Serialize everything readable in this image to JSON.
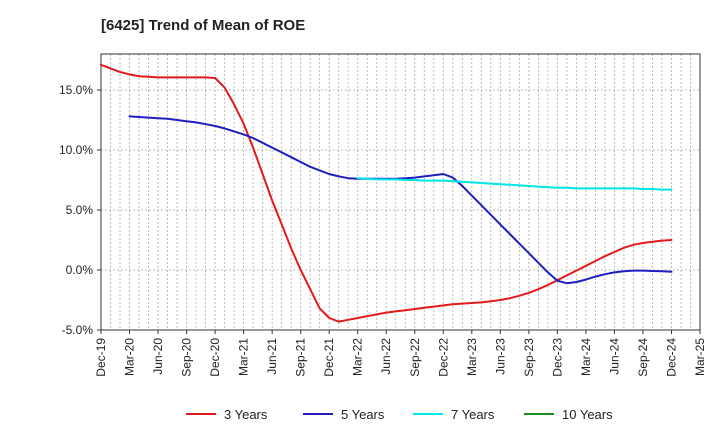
{
  "chart_data": {
    "type": "line",
    "title": "[6425]  Trend of Mean of ROE",
    "xlabel": "",
    "ylabel": "",
    "x_tick_labels": [
      "Dec-19",
      "Mar-20",
      "Jun-20",
      "Sep-20",
      "Dec-20",
      "Mar-21",
      "Jun-21",
      "Sep-21",
      "Dec-21",
      "Mar-22",
      "Jun-22",
      "Sep-22",
      "Dec-22",
      "Mar-23",
      "Jun-23",
      "Sep-23",
      "Dec-23",
      "Mar-24",
      "Jun-24",
      "Sep-24",
      "Dec-24",
      "Mar-25"
    ],
    "y_tick_labels": [
      "-5.0%",
      "0.0%",
      "5.0%",
      "10.0%",
      "15.0%"
    ],
    "y_ticks": [
      -5,
      0,
      5,
      10,
      15
    ],
    "ylim": [
      -5,
      18
    ],
    "grid": true,
    "legend_position": "bottom",
    "series": [
      {
        "name": "3 Years",
        "color": "#e31a1c",
        "x": [
          "Dec-19",
          "Jan-20",
          "Feb-20",
          "Mar-20",
          "Apr-20",
          "May-20",
          "Jun-20",
          "Jul-20",
          "Aug-20",
          "Sep-20",
          "Oct-20",
          "Nov-20",
          "Dec-20",
          "Jan-21",
          "Feb-21",
          "Mar-21",
          "Apr-21",
          "May-21",
          "Jun-21",
          "Jul-21",
          "Aug-21",
          "Sep-21",
          "Oct-21",
          "Nov-21",
          "Dec-21",
          "Jan-22",
          "Feb-22",
          "Mar-22",
          "Apr-22",
          "May-22",
          "Jun-22",
          "Jul-22",
          "Aug-22",
          "Sep-22",
          "Oct-22",
          "Nov-22",
          "Dec-22",
          "Jan-23",
          "Feb-23",
          "Mar-23",
          "Apr-23",
          "May-23",
          "Jun-23",
          "Jul-23",
          "Aug-23",
          "Sep-23",
          "Oct-23",
          "Nov-23",
          "Dec-23",
          "Jan-24",
          "Feb-24",
          "Mar-24",
          "Apr-24",
          "May-24",
          "Jun-24",
          "Jul-24",
          "Aug-24",
          "Sep-24",
          "Oct-24",
          "Nov-24",
          "Dec-24"
        ],
        "values": [
          17.1,
          16.8,
          16.5,
          16.3,
          16.15,
          16.1,
          16.05,
          16.05,
          16.05,
          16.05,
          16.05,
          16.05,
          16.0,
          15.2,
          13.8,
          12.2,
          10.2,
          8.0,
          5.8,
          3.8,
          1.8,
          0.0,
          -1.6,
          -3.2,
          -4.0,
          -4.3,
          -4.15,
          -4.0,
          -3.85,
          -3.7,
          -3.55,
          -3.45,
          -3.35,
          -3.25,
          -3.15,
          -3.05,
          -2.95,
          -2.85,
          -2.8,
          -2.75,
          -2.7,
          -2.6,
          -2.5,
          -2.35,
          -2.15,
          -1.9,
          -1.6,
          -1.25,
          -0.85,
          -0.45,
          -0.05,
          0.35,
          0.75,
          1.15,
          1.5,
          1.85,
          2.1,
          2.25,
          2.35,
          2.45,
          2.5
        ]
      },
      {
        "name": "5 Years",
        "color": "#1f1fbf",
        "x": [
          "Mar-20",
          "Apr-20",
          "May-20",
          "Jun-20",
          "Jul-20",
          "Aug-20",
          "Sep-20",
          "Oct-20",
          "Nov-20",
          "Dec-20",
          "Jan-21",
          "Feb-21",
          "Mar-21",
          "Apr-21",
          "May-21",
          "Jun-21",
          "Jul-21",
          "Aug-21",
          "Sep-21",
          "Oct-21",
          "Nov-21",
          "Dec-21",
          "Jan-22",
          "Feb-22",
          "Mar-22",
          "Apr-22",
          "May-22",
          "Jun-22",
          "Jul-22",
          "Aug-22",
          "Sep-22",
          "Oct-22",
          "Nov-22",
          "Dec-22",
          "Jan-23",
          "Feb-23",
          "Mar-23",
          "Apr-23",
          "May-23",
          "Jun-23",
          "Jul-23",
          "Aug-23",
          "Sep-23",
          "Oct-23",
          "Nov-23",
          "Dec-23",
          "Jan-24",
          "Feb-24",
          "Mar-24",
          "Apr-24",
          "May-24",
          "Jun-24",
          "Jul-24",
          "Aug-24",
          "Sep-24",
          "Oct-24",
          "Nov-24",
          "Dec-24"
        ],
        "values": [
          12.8,
          12.75,
          12.7,
          12.65,
          12.6,
          12.5,
          12.4,
          12.3,
          12.15,
          12.0,
          11.8,
          11.55,
          11.3,
          11.0,
          10.6,
          10.2,
          9.8,
          9.4,
          9.0,
          8.6,
          8.3,
          8.0,
          7.8,
          7.65,
          7.6,
          7.6,
          7.6,
          7.6,
          7.6,
          7.65,
          7.7,
          7.8,
          7.9,
          8.0,
          7.7,
          7.0,
          6.2,
          5.4,
          4.6,
          3.8,
          3.0,
          2.2,
          1.4,
          0.6,
          -0.2,
          -0.9,
          -1.1,
          -1.0,
          -0.8,
          -0.55,
          -0.35,
          -0.2,
          -0.1,
          -0.05,
          -0.05,
          -0.08,
          -0.1,
          -0.15
        ]
      },
      {
        "name": "7 Years",
        "color": "#00e5e5",
        "x": [
          "Mar-22",
          "Apr-22",
          "May-22",
          "Jun-22",
          "Jul-22",
          "Aug-22",
          "Sep-22",
          "Oct-22",
          "Nov-22",
          "Dec-22",
          "Jan-23",
          "Feb-23",
          "Mar-23",
          "Apr-23",
          "May-23",
          "Jun-23",
          "Jul-23",
          "Aug-23",
          "Sep-23",
          "Oct-23",
          "Nov-23",
          "Dec-23",
          "Jan-24",
          "Feb-24",
          "Mar-24",
          "Apr-24",
          "May-24",
          "Jun-24",
          "Jul-24",
          "Aug-24",
          "Sep-24",
          "Oct-24",
          "Nov-24",
          "Dec-24"
        ],
        "values": [
          7.65,
          7.6,
          7.55,
          7.55,
          7.55,
          7.5,
          7.5,
          7.45,
          7.45,
          7.45,
          7.4,
          7.35,
          7.3,
          7.25,
          7.2,
          7.15,
          7.1,
          7.05,
          7.0,
          6.95,
          6.9,
          6.85,
          6.85,
          6.8,
          6.8,
          6.8,
          6.8,
          6.8,
          6.8,
          6.8,
          6.75,
          6.75,
          6.7,
          6.7
        ]
      },
      {
        "name": "10 Years",
        "color": "#1a8c1a",
        "x": [],
        "values": []
      }
    ]
  }
}
